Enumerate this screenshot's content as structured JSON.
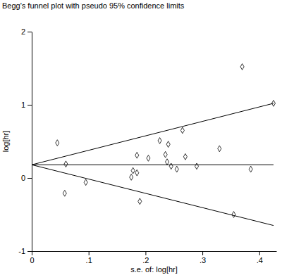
{
  "chart_data": {
    "type": "scatter",
    "title": "Begg's funnel plot with pseudo 95% confidence limits",
    "x_label": "s.e. of: log[hr]",
    "y_label": "log[hr]",
    "xlim": [
      0,
      0.43
    ],
    "ylim": [
      -1,
      2
    ],
    "xticks": [
      0,
      {
        "value": 0.1,
        "label": ".1"
      },
      {
        "value": 0.2,
        "label": ".2"
      },
      {
        "value": 0.3,
        "label": ".3"
      },
      {
        "value": 0.4,
        "label": ".4"
      }
    ],
    "yticks": [
      -1,
      0,
      1,
      2
    ],
    "grid": false,
    "series": [
      {
        "type": "scatter",
        "marker": "diamond",
        "color": "#000000",
        "x": [
          0.045,
          0.058,
          0.06,
          0.095,
          0.175,
          0.178,
          0.185,
          0.185,
          0.19,
          0.205,
          0.225,
          0.235,
          0.24,
          0.245,
          0.238,
          0.255,
          0.265,
          0.27,
          0.29,
          0.33,
          0.355,
          0.37,
          0.385,
          0.425
        ],
        "values": [
          0.48,
          -0.21,
          0.19,
          -0.06,
          0.01,
          0.1,
          0.07,
          0.31,
          -0.32,
          0.27,
          0.51,
          0.32,
          0.46,
          0.16,
          0.22,
          0.12,
          0.65,
          0.29,
          0.16,
          0.4,
          -0.5,
          1.52,
          0.12,
          1.02
        ]
      },
      {
        "type": "line",
        "line_style": "solid",
        "color": "#000000",
        "x": [
          0,
          0.425
        ],
        "values": [
          0.18,
          0.18
        ]
      },
      {
        "type": "line",
        "line_style": "solid",
        "color": "#000000",
        "x": [
          0,
          0.425
        ],
        "values": [
          0.18,
          1.02
        ]
      },
      {
        "type": "line",
        "line_style": "solid",
        "color": "#000000",
        "x": [
          0,
          0.425
        ],
        "values": [
          0.18,
          -0.65
        ]
      }
    ]
  }
}
